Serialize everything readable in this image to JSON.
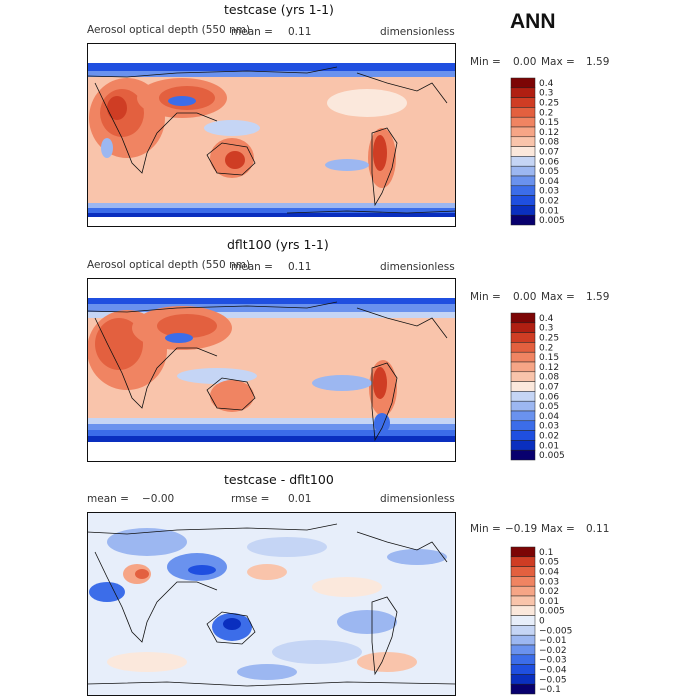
{
  "season": "ANN",
  "colors": {
    "abs_scale": [
      "#08006e",
      "#0a2fbf",
      "#1f4fe0",
      "#3c6de9",
      "#6a92ee",
      "#9cb7f1",
      "#c5d5f5",
      "#fbe8dc",
      "#f9c4ab",
      "#f6a586",
      "#f08462",
      "#e3603f",
      "#cf3d24",
      "#b01f12",
      "#7c0505"
    ],
    "diff_scale": [
      "#08006e",
      "#0a2fbf",
      "#1f4fe0",
      "#3c6de9",
      "#6a92ee",
      "#9cb7f1",
      "#c5d5f5",
      "#e7eefa",
      "#fbe8dc",
      "#f9c4ab",
      "#f6a586",
      "#f08462",
      "#e3603f",
      "#cf3d24",
      "#7c0505"
    ]
  },
  "chart_data": [
    {
      "type": "heatmap",
      "title": "testcase (yrs 1-1)",
      "variable": "Aerosol optical depth (550 nm)",
      "mean_label": "mean =",
      "mean": "0.11",
      "units": "dimensionless",
      "min_label": "Min =",
      "min": "0.00",
      "max_label": "Max =",
      "max": "1.59",
      "colorbar": [
        "0.4",
        "0.3",
        "0.25",
        "0.2",
        "0.15",
        "0.12",
        "0.08",
        "0.07",
        "0.06",
        "0.05",
        "0.04",
        "0.03",
        "0.02",
        "0.01",
        "0.005"
      ]
    },
    {
      "type": "heatmap",
      "title": "dflt100 (yrs 1-1)",
      "variable": "Aerosol optical depth (550 nm)",
      "mean_label": "mean =",
      "mean": "0.11",
      "units": "dimensionless",
      "min_label": "Min =",
      "min": "0.00",
      "max_label": "Max =",
      "max": "1.59",
      "colorbar": [
        "0.4",
        "0.3",
        "0.25",
        "0.2",
        "0.15",
        "0.12",
        "0.08",
        "0.07",
        "0.06",
        "0.05",
        "0.04",
        "0.03",
        "0.02",
        "0.01",
        "0.005"
      ]
    },
    {
      "type": "heatmap",
      "title": "testcase - dflt100",
      "mean_label": "mean =",
      "mean": "−0.00",
      "rmse_label": "rmse =",
      "rmse": "0.01",
      "units": "dimensionless",
      "min_label": "Min =",
      "min": "−0.19",
      "max_label": "Max =",
      "max": "0.11",
      "colorbar": [
        "0.1",
        "0.05",
        "0.04",
        "0.03",
        "0.02",
        "0.01",
        "0.005",
        "0",
        "−0.005",
        "−0.01",
        "−0.02",
        "−0.03",
        "−0.04",
        "−0.05",
        "−0.1"
      ]
    }
  ]
}
